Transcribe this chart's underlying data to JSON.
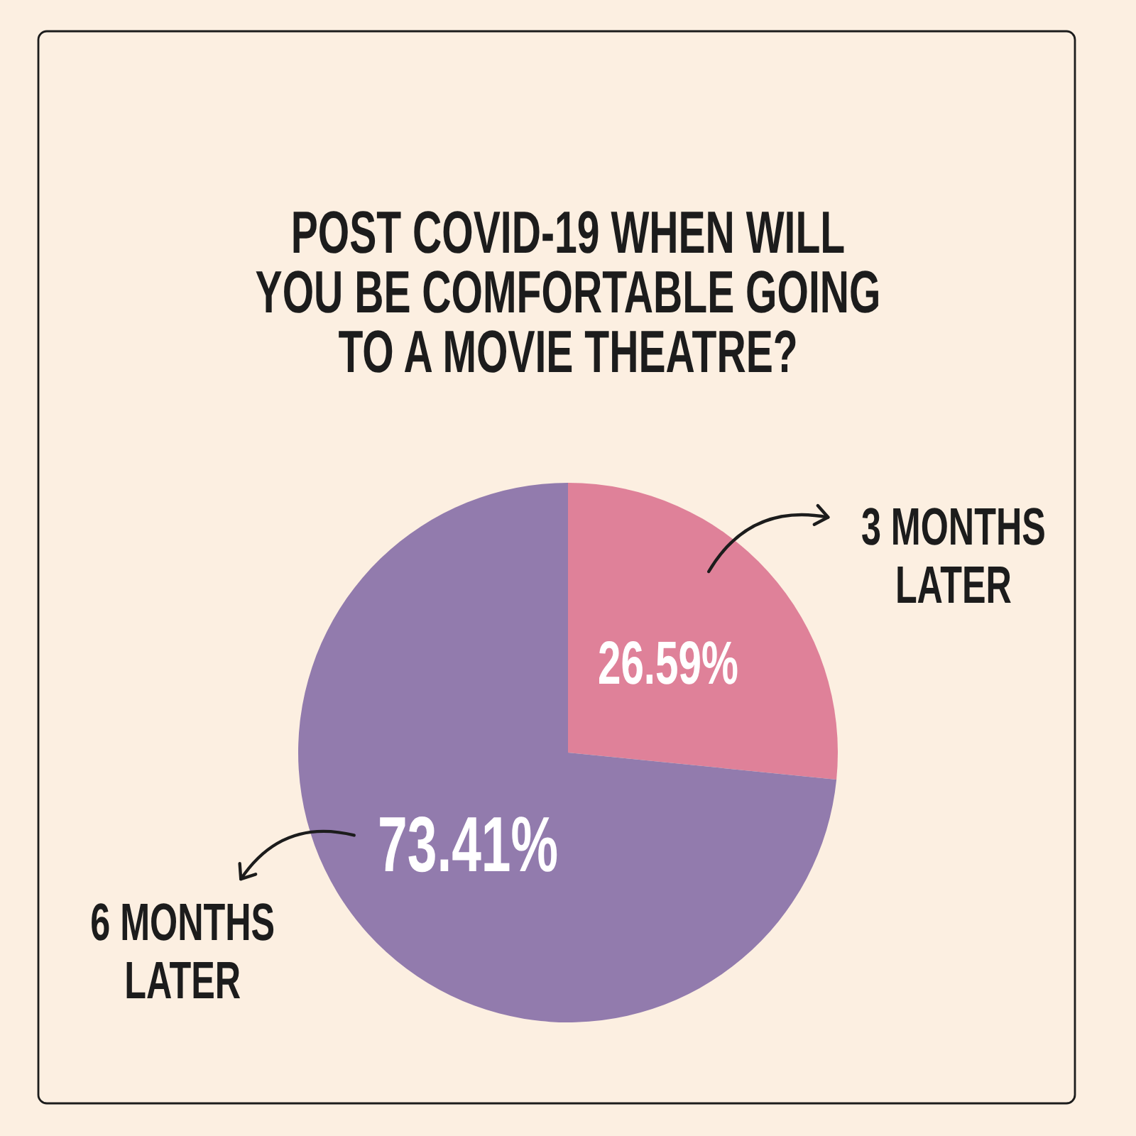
{
  "chart_data": {
    "type": "pie",
    "title": "POST COVID-19 WHEN WILL YOU BE COMFORTABLE GOING TO A MOVIE THEATRE?",
    "categories": [
      "3 MONTHS LATER",
      "6 MONTHS LATER"
    ],
    "values": [
      26.59,
      73.41
    ],
    "colors": [
      "#df8199",
      "#927bad"
    ],
    "value_labels": [
      "26.59%",
      "73.41%"
    ]
  }
}
